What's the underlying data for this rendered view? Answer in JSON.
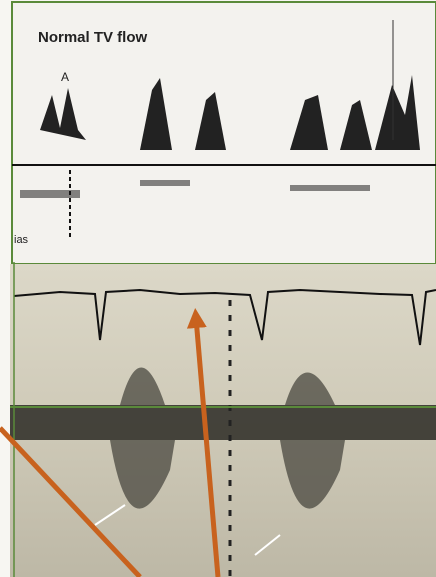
{
  "header": {
    "title": "Normal TV flow"
  },
  "annotations": {
    "peak": "A",
    "tracing": "ias"
  }
}
